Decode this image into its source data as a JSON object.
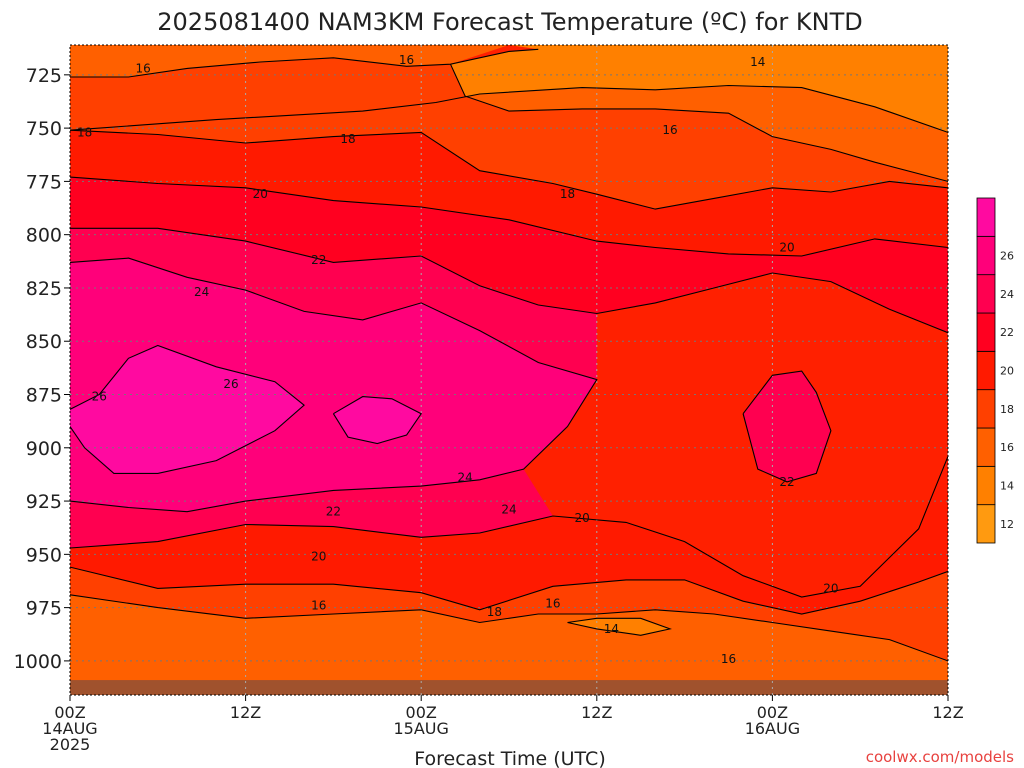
{
  "chart_data": {
    "type": "contour",
    "title": "2025081400 NAM3KM Forecast Temperature (ºC) for KNTD",
    "xlabel": "Forecast Time (UTC)",
    "ylabel": "",
    "credit": "coolwx.com/models",
    "x_ticks": [
      {
        "hour": 0,
        "lines": [
          "00Z",
          "14AUG",
          "2025"
        ]
      },
      {
        "hour": 12,
        "lines": [
          "12Z"
        ]
      },
      {
        "hour": 24,
        "lines": [
          "00Z",
          "15AUG"
        ]
      },
      {
        "hour": 36,
        "lines": [
          "12Z"
        ]
      },
      {
        "hour": 48,
        "lines": [
          "00Z",
          "16AUG"
        ]
      },
      {
        "hour": 60,
        "lines": [
          "12Z"
        ]
      }
    ],
    "xlim": [
      0,
      60
    ],
    "y_ticks": [
      725,
      750,
      775,
      800,
      825,
      850,
      875,
      900,
      925,
      950,
      975,
      1000
    ],
    "ylim": [
      711,
      1016
    ],
    "colorbar": {
      "ticks": [
        12,
        14,
        16,
        18,
        20,
        22,
        24,
        26
      ],
      "levels": [
        11,
        13,
        15,
        17,
        19,
        21,
        23,
        25,
        27,
        29
      ],
      "colors": [
        "#ff9a10",
        "#ff8000",
        "#ff6000",
        "#ff4000",
        "#ff1a00",
        "#ff0020",
        "#ff0050",
        "#ff007a",
        "#ff0aa0"
      ]
    },
    "surface_color": "#a0522d",
    "contour_lines": [
      {
        "value": 14,
        "points": [
          [
            0,
            751
          ],
          [
            10,
            746
          ],
          [
            20,
            742
          ],
          [
            25,
            738
          ],
          [
            28,
            734
          ],
          [
            35,
            731
          ],
          [
            40,
            732
          ],
          [
            45,
            730
          ],
          [
            50,
            731
          ],
          [
            55,
            740
          ],
          [
            60,
            752
          ]
        ]
      },
      {
        "value": 16,
        "points": [
          [
            0,
            726
          ],
          [
            4,
            726
          ],
          [
            8,
            722
          ],
          [
            13,
            719
          ],
          [
            18,
            717
          ],
          [
            23,
            721
          ],
          [
            26,
            720
          ],
          [
            30,
            714
          ],
          [
            32,
            713
          ]
        ]
      },
      {
        "value": 16,
        "points": [
          [
            26,
            720
          ],
          [
            27,
            735
          ],
          [
            30,
            742
          ],
          [
            35,
            741
          ],
          [
            40,
            741
          ],
          [
            45,
            743
          ],
          [
            48,
            754
          ],
          [
            52,
            760
          ],
          [
            55,
            766
          ],
          [
            60,
            775
          ]
        ]
      },
      {
        "value": 18,
        "points": [
          [
            0,
            751
          ],
          [
            6,
            753
          ],
          [
            12,
            757
          ],
          [
            18,
            754
          ],
          [
            24,
            752
          ],
          [
            28,
            770
          ],
          [
            33,
            776
          ],
          [
            36,
            781
          ],
          [
            40,
            788
          ],
          [
            44,
            783
          ],
          [
            48,
            778
          ],
          [
            52,
            780
          ],
          [
            56,
            775
          ],
          [
            60,
            778
          ]
        ]
      },
      {
        "value": 20,
        "points": [
          [
            0,
            773
          ],
          [
            6,
            776
          ],
          [
            12,
            778
          ],
          [
            18,
            784
          ],
          [
            24,
            787
          ],
          [
            30,
            793
          ],
          [
            36,
            803
          ],
          [
            40,
            806
          ],
          [
            45,
            809
          ],
          [
            50,
            810
          ],
          [
            55,
            802
          ],
          [
            60,
            806
          ]
        ]
      },
      {
        "value": 22,
        "points": [
          [
            0,
            797
          ],
          [
            6,
            797
          ],
          [
            12,
            803
          ],
          [
            18,
            813
          ],
          [
            24,
            810
          ],
          [
            28,
            824
          ],
          [
            32,
            833
          ],
          [
            36,
            837
          ],
          [
            40,
            832
          ],
          [
            44,
            825
          ],
          [
            48,
            818
          ],
          [
            52,
            822
          ],
          [
            56,
            835
          ],
          [
            60,
            846
          ]
        ]
      },
      {
        "value": 24,
        "points": [
          [
            0,
            813
          ],
          [
            4,
            811
          ],
          [
            8,
            820
          ],
          [
            12,
            826
          ],
          [
            16,
            836
          ],
          [
            20,
            840
          ],
          [
            24,
            832
          ],
          [
            28,
            845
          ],
          [
            32,
            860
          ],
          [
            36,
            868
          ],
          [
            34,
            890
          ],
          [
            31,
            910
          ],
          [
            28,
            915
          ],
          [
            24,
            918
          ],
          [
            18,
            920
          ],
          [
            12,
            925
          ],
          [
            8,
            930
          ],
          [
            4,
            928
          ],
          [
            0,
            925
          ]
        ]
      },
      {
        "value": 26,
        "points": [
          [
            0,
            882
          ],
          [
            2,
            875
          ],
          [
            4,
            858
          ],
          [
            6,
            852
          ],
          [
            10,
            862
          ],
          [
            14,
            869
          ],
          [
            16,
            880
          ],
          [
            14,
            892
          ],
          [
            10,
            906
          ],
          [
            6,
            912
          ],
          [
            3,
            912
          ],
          [
            1,
            900
          ],
          [
            0,
            890
          ]
        ]
      },
      {
        "value": 26,
        "points": [
          [
            18,
            884
          ],
          [
            20,
            876
          ],
          [
            22,
            877
          ],
          [
            24,
            884
          ],
          [
            23,
            894
          ],
          [
            21,
            898
          ],
          [
            19,
            895
          ],
          [
            18,
            884
          ]
        ]
      },
      {
        "value": 22,
        "points": [
          [
            46,
            884
          ],
          [
            48,
            866
          ],
          [
            50,
            864
          ],
          [
            51,
            874
          ],
          [
            52,
            892
          ],
          [
            51,
            912
          ],
          [
            49,
            916
          ],
          [
            47,
            910
          ],
          [
            46,
            884
          ]
        ]
      },
      {
        "value": 20,
        "points": [
          [
            0,
            947
          ],
          [
            6,
            944
          ],
          [
            12,
            936
          ],
          [
            18,
            937
          ],
          [
            24,
            942
          ],
          [
            28,
            940
          ],
          [
            33,
            932
          ],
          [
            38,
            935
          ],
          [
            42,
            944
          ],
          [
            46,
            960
          ],
          [
            50,
            970
          ],
          [
            54,
            965
          ],
          [
            58,
            938
          ],
          [
            60,
            904
          ]
        ]
      },
      {
        "value": 18,
        "points": [
          [
            0,
            956
          ],
          [
            6,
            966
          ],
          [
            12,
            964
          ],
          [
            18,
            964
          ],
          [
            24,
            968
          ],
          [
            28,
            976
          ],
          [
            33,
            965
          ],
          [
            38,
            962
          ],
          [
            42,
            962
          ],
          [
            46,
            972
          ],
          [
            50,
            978
          ],
          [
            54,
            972
          ],
          [
            58,
            963
          ],
          [
            60,
            958
          ]
        ]
      },
      {
        "value": 16,
        "points": [
          [
            0,
            969
          ],
          [
            6,
            975
          ],
          [
            12,
            980
          ],
          [
            18,
            978
          ],
          [
            24,
            976
          ],
          [
            28,
            982
          ],
          [
            32,
            978
          ],
          [
            36,
            978
          ],
          [
            40,
            976
          ],
          [
            44,
            978
          ],
          [
            48,
            982
          ],
          [
            52,
            986
          ],
          [
            56,
            990
          ],
          [
            60,
            1000
          ]
        ]
      },
      {
        "value": 14,
        "points": [
          [
            34,
            982
          ],
          [
            36,
            985
          ],
          [
            39,
            988
          ],
          [
            41,
            985
          ],
          [
            39,
            980
          ],
          [
            36,
            980
          ],
          [
            34,
            982
          ]
        ]
      }
    ],
    "contour_labels": [
      {
        "value": 16,
        "x": 5,
        "y": 722
      },
      {
        "value": 16,
        "x": 23,
        "y": 718
      },
      {
        "value": 14,
        "x": 47,
        "y": 719
      },
      {
        "value": 18,
        "x": 1,
        "y": 752
      },
      {
        "value": 18,
        "x": 19,
        "y": 755
      },
      {
        "value": 16,
        "x": 41,
        "y": 751
      },
      {
        "value": 20,
        "x": 13,
        "y": 781
      },
      {
        "value": 18,
        "x": 34,
        "y": 781
      },
      {
        "value": 22,
        "x": 17,
        "y": 812
      },
      {
        "value": 20,
        "x": 49,
        "y": 806
      },
      {
        "value": 24,
        "x": 9,
        "y": 827
      },
      {
        "value": 26,
        "x": 11,
        "y": 870
      },
      {
        "value": 26,
        "x": 2,
        "y": 876
      },
      {
        "value": 24,
        "x": 27,
        "y": 914
      },
      {
        "value": 24,
        "x": 30,
        "y": 929
      },
      {
        "value": 22,
        "x": 49,
        "y": 916
      },
      {
        "value": 22,
        "x": 18,
        "y": 930
      },
      {
        "value": 20,
        "x": 35,
        "y": 933
      },
      {
        "value": 20,
        "x": 17,
        "y": 951
      },
      {
        "value": 20,
        "x": 52,
        "y": 966
      },
      {
        "value": 16,
        "x": 17,
        "y": 974
      },
      {
        "value": 16,
        "x": 33,
        "y": 973
      },
      {
        "value": 18,
        "x": 29,
        "y": 977
      },
      {
        "value": 14,
        "x": 37,
        "y": 985
      },
      {
        "value": 16,
        "x": 45,
        "y": 999
      }
    ]
  }
}
